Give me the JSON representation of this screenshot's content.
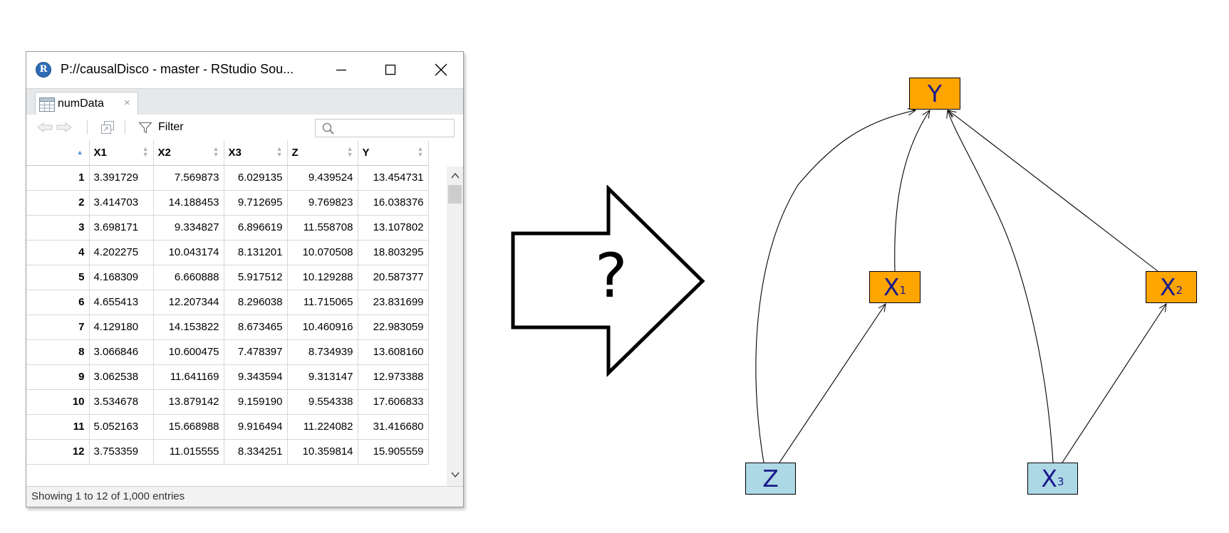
{
  "window": {
    "title": "P://causalDisco - master - RStudio Sou...",
    "controls": [
      "minimize",
      "maximize",
      "close"
    ]
  },
  "tab": {
    "label": "numData",
    "close": "×"
  },
  "toolbar": {
    "filter_label": "Filter",
    "search_placeholder": ""
  },
  "table": {
    "columns": [
      "X1",
      "X2",
      "X3",
      "Z",
      "Y"
    ],
    "rows": [
      [
        "1",
        "3.391729",
        "7.569873",
        "6.029135",
        "9.439524",
        "13.454731"
      ],
      [
        "2",
        "3.414703",
        "14.188453",
        "9.712695",
        "9.769823",
        "16.038376"
      ],
      [
        "3",
        "3.698171",
        "9.334827",
        "6.896619",
        "11.558708",
        "13.107802"
      ],
      [
        "4",
        "4.202275",
        "10.043174",
        "8.131201",
        "10.070508",
        "18.803295"
      ],
      [
        "5",
        "4.168309",
        "6.660888",
        "5.917512",
        "10.129288",
        "20.587377"
      ],
      [
        "6",
        "4.655413",
        "12.207344",
        "8.296038",
        "11.715065",
        "23.831699"
      ],
      [
        "7",
        "4.129180",
        "14.153822",
        "8.673465",
        "10.460916",
        "22.983059"
      ],
      [
        "8",
        "3.066846",
        "10.600475",
        "7.478397",
        "8.734939",
        "13.608160"
      ],
      [
        "9",
        "3.062538",
        "11.641169",
        "9.343594",
        "9.313147",
        "12.973388"
      ],
      [
        "10",
        "3.534678",
        "13.879142",
        "9.159190",
        "9.554338",
        "17.606833"
      ],
      [
        "11",
        "5.052163",
        "15.668988",
        "9.916494",
        "11.224082",
        "31.416680"
      ],
      [
        "12",
        "3.753359",
        "11.015555",
        "8.334251",
        "10.359814",
        "15.905559"
      ]
    ]
  },
  "status": {
    "text": "Showing 1 to 12 of 1,000 entries"
  },
  "arrow": {
    "label": "?"
  },
  "dag": {
    "nodes": {
      "Y": {
        "base": "Y",
        "sub": "",
        "color": "#ffa500"
      },
      "X1": {
        "base": "X",
        "sub": "1",
        "color": "#ffa500"
      },
      "X2": {
        "base": "X",
        "sub": "2",
        "color": "#ffa500"
      },
      "Z": {
        "base": "Z",
        "sub": "",
        "color": "#add8e6"
      },
      "X3": {
        "base": "X",
        "sub": "3",
        "color": "#add8e6"
      }
    },
    "edges": [
      [
        "Z",
        "Y"
      ],
      [
        "X1",
        "Y"
      ],
      [
        "X3",
        "Y"
      ],
      [
        "X2",
        "Y"
      ],
      [
        "Z",
        "X1"
      ],
      [
        "X3",
        "X2"
      ]
    ]
  }
}
